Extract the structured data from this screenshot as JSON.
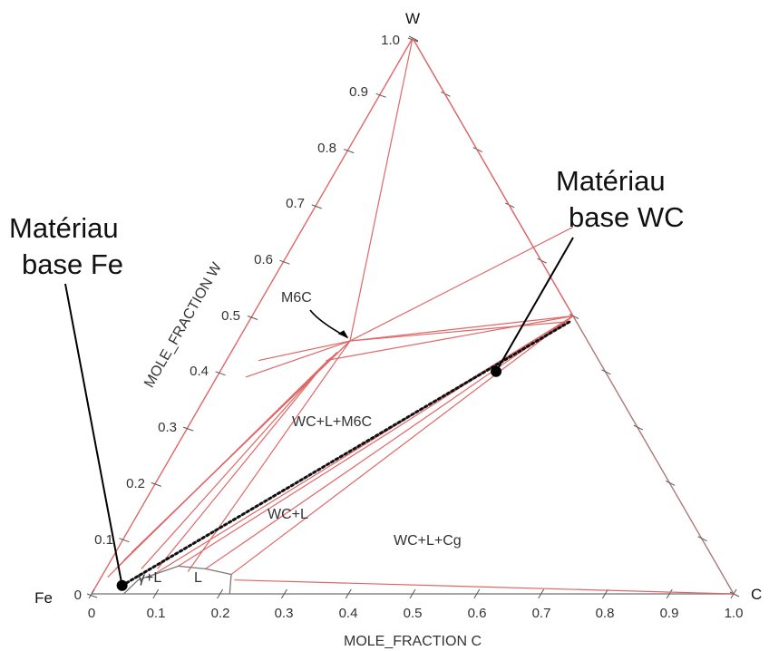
{
  "chart_data": {
    "type": "ternary phase diagram",
    "corners": {
      "top": "W",
      "left": "Fe",
      "right": "C"
    },
    "axes": {
      "left_title": "MOLE_FRACTION W",
      "bottom_title": "MOLE_FRACTION C",
      "left_ticks": [
        "0",
        "0.1",
        "0.2",
        "0.3",
        "0.4",
        "0.5",
        "0.6",
        "0.7",
        "0.8",
        "0.9",
        "1.0"
      ],
      "bottom_ticks": [
        "0",
        "0.1",
        "0.2",
        "0.3",
        "0.4",
        "0.5",
        "0.6",
        "0.7",
        "0.8",
        "0.9",
        "1.0"
      ]
    },
    "regions": [
      {
        "label": "M6C",
        "c": 0.13,
        "w": 0.47
      },
      {
        "label": "WC+L+M6C",
        "c": 0.34,
        "w": 0.28
      },
      {
        "label": "WC+L",
        "c": 0.25,
        "w": 0.13
      },
      {
        "label": "WC+L+Cg",
        "c": 0.54,
        "w": 0.09
      },
      {
        "label": "γ+L",
        "c": 0.056,
        "w": 0.02
      },
      {
        "label": "L",
        "c": 0.146,
        "w": 0.016
      }
    ],
    "boundary_lines": [
      {
        "from": [
          0,
          1
        ],
        "to": [
          0.175,
          0.455
        ]
      },
      {
        "from": [
          0,
          1
        ],
        "to": [
          0.5,
          0.5
        ]
      },
      {
        "from": [
          0.05,
          0.42
        ],
        "to": [
          0.175,
          0.455
        ]
      },
      {
        "from": [
          0.045,
          0.39
        ],
        "to": [
          0.175,
          0.455
        ]
      },
      {
        "from": [
          0.175,
          0.455
        ],
        "to": [
          0.5,
          0.5
        ]
      },
      {
        "from": [
          0.175,
          0.455
        ],
        "to": [
          0.42,
          0.66
        ]
      },
      {
        "from": [
          0.175,
          0.455
        ],
        "to": [
          0.5,
          0.49
        ]
      },
      {
        "from": [
          0.155,
          0.42
        ],
        "to": [
          0.5,
          0.5
        ]
      },
      {
        "from": [
          0.175,
          0.455
        ],
        "to": [
          0.13,
          0.04
        ]
      },
      {
        "from": [
          0.175,
          0.455
        ],
        "to": [
          0.02,
          0.06
        ]
      },
      {
        "from": [
          0.175,
          0.455
        ],
        "to": [
          0.025,
          0.075
        ]
      },
      {
        "from": [
          0.165,
          0.435
        ],
        "to": [
          0.015,
          0.045
        ]
      },
      {
        "from": [
          0.16,
          0.425
        ],
        "to": [
          0.01,
          0.03
        ]
      },
      {
        "from": [
          0.155,
          0.41
        ],
        "to": [
          0.055,
          0.045
        ]
      },
      {
        "from": [
          0.155,
          0.41
        ],
        "to": [
          0.08,
          0.045
        ]
      },
      {
        "from": [
          0.11,
          0.05
        ],
        "to": [
          0.5,
          0.5
        ]
      },
      {
        "from": [
          0.2,
          0.035
        ],
        "to": [
          0.5,
          0.5
        ]
      },
      {
        "from": [
          0.155,
          0.045
        ],
        "to": [
          0.5,
          0.5
        ]
      },
      {
        "from": [
          0.21,
          0.025
        ],
        "to": [
          1,
          0
        ]
      },
      {
        "from": [
          0.075,
          0.03
        ],
        "to": [
          0.5,
          0.5
        ]
      }
    ],
    "liquid_boundary": [
      [
        0.05,
        0.0
      ],
      [
        0.06,
        0.025
      ],
      [
        0.11,
        0.05
      ],
      [
        0.155,
        0.045
      ],
      [
        0.2,
        0.035
      ],
      [
        0.215,
        0.0
      ]
    ],
    "line_colors": {
      "boundary": "#e06666",
      "frame": "#888888",
      "liquid": "#777777",
      "tie": "#111111"
    },
    "tie_line": {
      "from": [
        0.04,
        0.015
      ],
      "to": [
        0.5,
        0.49
      ],
      "style": "dotted"
    },
    "points": [
      {
        "name": "base Fe",
        "c": 0.04,
        "w": 0.015
      },
      {
        "name": "base WC",
        "c": 0.43,
        "w": 0.4
      }
    ],
    "annotations": [
      {
        "text_lines": [
          "Matériau",
          "base Fe"
        ],
        "points_to": "base Fe"
      },
      {
        "text_lines": [
          "Matériau",
          "base WC"
        ],
        "points_to": "base WC"
      },
      {
        "text_lines": [
          "M6C"
        ],
        "points_to": "M6C"
      }
    ]
  }
}
